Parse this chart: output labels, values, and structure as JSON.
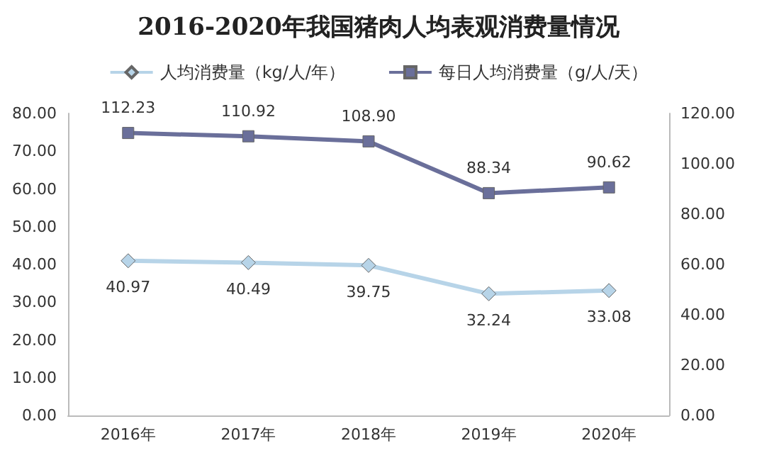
{
  "chart_data": {
    "type": "line",
    "title": "2016-2020年我国猪肉人均表观消费量情况",
    "categories": [
      "2016年",
      "2017年",
      "2018年",
      "2019年",
      "2020年"
    ],
    "series": [
      {
        "name": "人均消费量（kg/人/年）",
        "color": "#b7d4e8",
        "marker": "diamond",
        "values": [
          40.97,
          40.49,
          39.75,
          32.24,
          33.08
        ],
        "value_labels": [
          "40.97",
          "40.49",
          "39.75",
          "32.24",
          "33.08"
        ]
      },
      {
        "name": "每日人均消费量（g/人/天）",
        "color": "#6a6f9a",
        "marker": "square",
        "axis": "y2",
        "values": [
          112.23,
          110.92,
          108.9,
          88.34,
          90.62
        ],
        "value_labels": [
          "112.23",
          "110.92",
          "108.90",
          "88.34",
          "90.62"
        ]
      }
    ],
    "ylim": [
      0,
      80
    ],
    "yticks": [
      {
        "value": 0,
        "label": "0.00"
      },
      {
        "value": 10,
        "label": "10.00"
      },
      {
        "value": 20,
        "label": "20.00"
      },
      {
        "value": 30,
        "label": "30.00"
      },
      {
        "value": 40,
        "label": "40.00"
      },
      {
        "value": 50,
        "label": "50.00"
      },
      {
        "value": 60,
        "label": "60.00"
      },
      {
        "value": 70,
        "label": "70.00"
      },
      {
        "value": 80,
        "label": "80.00"
      }
    ],
    "y2lim": [
      0,
      120
    ],
    "y2ticks": [
      {
        "value": 0,
        "label": "0.00"
      },
      {
        "value": 20,
        "label": "20.00"
      },
      {
        "value": 40,
        "label": "40.00"
      },
      {
        "value": 60,
        "label": "60.00"
      },
      {
        "value": 80,
        "label": "80.00"
      },
      {
        "value": 100,
        "label": "100.00"
      },
      {
        "value": 120,
        "label": "120.00"
      }
    ],
    "grid": false,
    "legend": "top",
    "line_style": "solid"
  }
}
